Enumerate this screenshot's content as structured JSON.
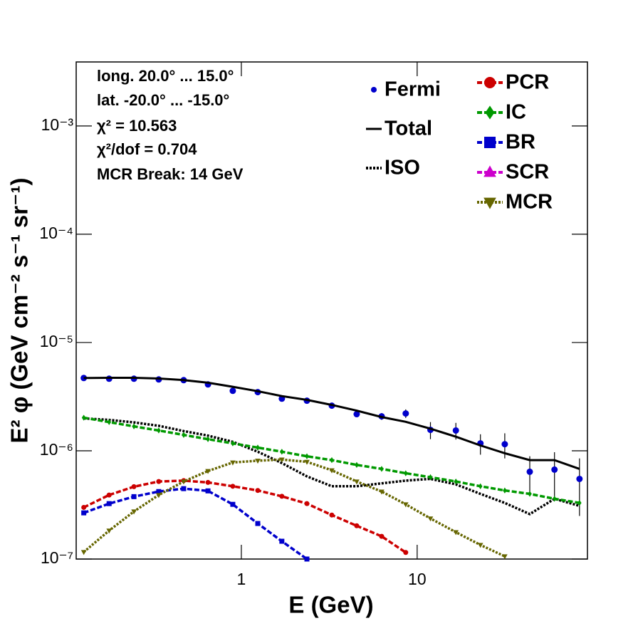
{
  "chart_data": {
    "type": "line",
    "annotations": [
      "long. 20.0° ... 15.0°",
      "lat. -20.0° ... -15.0°",
      "χ² = 10.563",
      "χ²/dof = 0.704",
      "MCR Break: 14 GeV"
    ],
    "x_label": "E (GeV)",
    "y_label": "E² φ (GeV cm⁻² s⁻¹ sr⁻¹)",
    "log_x": true,
    "log_y": true,
    "xlim": [
      0.115,
      93
    ],
    "ylim": [
      1e-07,
      0.0039
    ],
    "xticks": [
      1,
      10
    ],
    "yticks": [
      {
        "value": 1e-07,
        "label": "10⁻⁷"
      },
      {
        "value": 1e-06,
        "label": "10⁻⁶"
      },
      {
        "value": 1e-05,
        "label": "10⁻⁵"
      },
      {
        "value": 0.0001,
        "label": "10⁻⁴"
      },
      {
        "value": 0.001,
        "label": "10⁻³"
      }
    ],
    "x": [
      0.127,
      0.177,
      0.245,
      0.339,
      0.47,
      0.646,
      0.894,
      1.24,
      1.7,
      2.36,
      3.27,
      4.53,
      6.28,
      8.61,
      11.9,
      16.6,
      22.9,
      31.5,
      43.7,
      60.4,
      83.8
    ],
    "series": [
      {
        "name": "Fermi",
        "color": "#0000cc",
        "marker": "circle",
        "line": "none",
        "values": [
          4.7e-06,
          4.63e-06,
          4.63e-06,
          4.56e-06,
          4.49e-06,
          4.1e-06,
          3.58e-06,
          3.48e-06,
          3.03e-06,
          2.9e-06,
          2.61e-06,
          2.18e-06,
          2.08e-06,
          2.21e-06,
          1.56e-06,
          1.54e-06,
          1.17e-06,
          1.15e-06,
          6.4e-07,
          6.7e-07,
          5.5e-07
        ],
        "errors": [
          5e-08,
          5e-08,
          5e-08,
          5e-08,
          5e-08,
          5e-08,
          5e-08,
          5e-08,
          5e-08,
          6e-08,
          7e-08,
          1e-07,
          1.5e-07,
          2e-07,
          2.8e-07,
          2.7e-07,
          2.5e-07,
          3e-07,
          2.5e-07,
          3e-07,
          3e-07
        ]
      },
      {
        "name": "Total",
        "color": "#000000",
        "marker": "none",
        "line": "solid",
        "values": [
          4.7e-06,
          4.72e-06,
          4.72e-06,
          4.65e-06,
          4.5e-06,
          4.25e-06,
          3.9e-06,
          3.55e-06,
          3.2e-06,
          2.95e-06,
          2.65e-06,
          2.35e-06,
          2.05e-06,
          1.85e-06,
          1.6e-06,
          1.35e-06,
          1.12e-06,
          9.5e-07,
          8.2e-07,
          8.2e-07,
          6.8e-07
        ]
      },
      {
        "name": "ISO",
        "color": "#000000",
        "marker": "none",
        "line": "dotted",
        "values": [
          1.99e-06,
          1.93e-06,
          1.83e-06,
          1.7e-06,
          1.52e-06,
          1.38e-06,
          1.21e-06,
          9.8e-07,
          7.7e-07,
          5.8e-07,
          4.7e-07,
          4.7e-07,
          5e-07,
          5.3e-07,
          5.5e-07,
          4.9e-07,
          4e-07,
          3.3e-07,
          2.6e-07,
          3.6e-07,
          3.1e-07
        ]
      },
      {
        "name": "PCR",
        "color": "#cc0000",
        "marker": "circle",
        "line": "dashed",
        "values": [
          3e-07,
          3.9e-07,
          4.66e-07,
          5.2e-07,
          5.3e-07,
          5.1e-07,
          4.7e-07,
          4.3e-07,
          3.8e-07,
          3.25e-07,
          2.55e-07,
          2.03e-07,
          1.62e-07,
          1.15e-07,
          null,
          null,
          null,
          null,
          null,
          null,
          null
        ]
      },
      {
        "name": "IC",
        "color": "#009900",
        "marker": "diamond",
        "line": "dashed",
        "values": [
          2.02e-06,
          1.84e-06,
          1.68e-06,
          1.54e-06,
          1.4e-06,
          1.28e-06,
          1.17e-06,
          1.07e-06,
          9.8e-07,
          8.9e-07,
          8.2e-07,
          7.4e-07,
          6.8e-07,
          6.2e-07,
          5.7e-07,
          5.2e-07,
          4.7e-07,
          4.3e-07,
          4e-07,
          3.6e-07,
          3.3e-07
        ]
      },
      {
        "name": "BR",
        "color": "#0000cc",
        "marker": "square",
        "line": "dashed",
        "values": [
          2.67e-07,
          3.25e-07,
          3.77e-07,
          4.2e-07,
          4.47e-07,
          4.26e-07,
          3.2e-07,
          2.13e-07,
          1.46e-07,
          1e-07,
          null,
          null,
          null,
          null,
          null,
          null,
          null,
          null,
          null,
          null,
          null
        ]
      },
      {
        "name": "SCR",
        "color": "#cc00cc",
        "marker": "triangle-up",
        "line": "dashed",
        "values": [
          null,
          null,
          null,
          null,
          null,
          null,
          null,
          null,
          null,
          null,
          null,
          null,
          null,
          null,
          null,
          null,
          null,
          null,
          null,
          null,
          null
        ]
      },
      {
        "name": "MCR",
        "color": "#666600",
        "marker": "triangle-down",
        "line": "dotted",
        "values": [
          1.16e-07,
          1.83e-07,
          2.75e-07,
          3.9e-07,
          5.2e-07,
          6.5e-07,
          7.8e-07,
          8.1e-07,
          8.3e-07,
          7.9e-07,
          6.6e-07,
          5.2e-07,
          4.2e-07,
          3.2e-07,
          2.37e-07,
          1.77e-07,
          1.35e-07,
          1.06e-07,
          null,
          null,
          null
        ]
      }
    ]
  }
}
